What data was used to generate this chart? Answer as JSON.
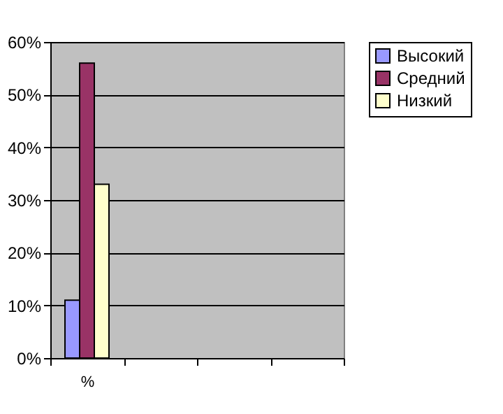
{
  "chart_data": {
    "type": "bar",
    "categories": [
      "%",
      null,
      null,
      null
    ],
    "series": [
      {
        "name": "Высокий",
        "color": "#9999ff",
        "values": [
          11,
          null,
          null,
          null
        ]
      },
      {
        "name": "Средний",
        "color": "#993366",
        "values": [
          56,
          null,
          null,
          null
        ]
      },
      {
        "name": "Низкий",
        "color": "#ffffcc",
        "values": [
          33,
          null,
          null,
          null
        ]
      }
    ],
    "ylim": [
      0,
      60
    ],
    "yticks": [
      {
        "value": 0,
        "label": "0%"
      },
      {
        "value": 10,
        "label": "10%"
      },
      {
        "value": 20,
        "label": "20%"
      },
      {
        "value": 30,
        "label": "30%"
      },
      {
        "value": 40,
        "label": "40%"
      },
      {
        "value": 50,
        "label": "50%"
      },
      {
        "value": 60,
        "label": "60%"
      }
    ],
    "grid": "y",
    "legend": "right"
  }
}
